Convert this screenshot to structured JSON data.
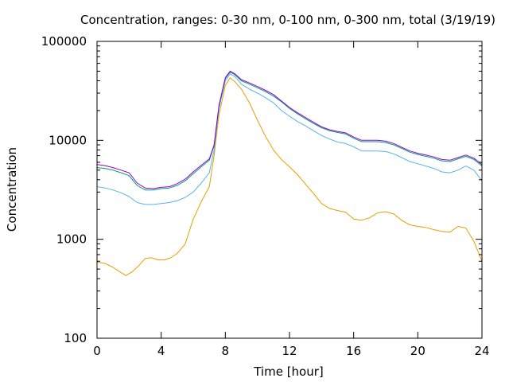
{
  "chart_data": {
    "type": "line",
    "title": "Concentration, ranges: 0-30 nm, 0-100 nm, 0-300 nm, total (3/19/19)",
    "xlabel": "Time [hour]",
    "ylabel": "Concentration",
    "xlim": [
      0,
      24
    ],
    "ylim": [
      100,
      100000
    ],
    "yscale": "log",
    "grid": false,
    "x_ticks": [
      0,
      4,
      8,
      12,
      16,
      20,
      24
    ],
    "x_tick_labels": [
      "0",
      "4",
      "8",
      "12",
      "16",
      "20",
      "24"
    ],
    "y_ticks": [
      100,
      1000,
      10000,
      100000
    ],
    "y_tick_labels": [
      "100",
      "1000",
      "10000",
      "100000"
    ],
    "series": [
      {
        "color": "#e69f00",
        "x": [
          0,
          0.5,
          1,
          1.5,
          1.8,
          2.2,
          2.6,
          3,
          3.4,
          3.8,
          4.2,
          4.6,
          5,
          5.5,
          6,
          6.5,
          7,
          7.3,
          7.6,
          8,
          8.3,
          8.6,
          9,
          9.5,
          10,
          10.5,
          11,
          11.5,
          12,
          12.5,
          13,
          13.5,
          14,
          14.5,
          15,
          15.5,
          16,
          16.5,
          17,
          17.5,
          18,
          18.5,
          19,
          19.5,
          20,
          20.5,
          21,
          21.5,
          22,
          22.5,
          23,
          23.5,
          24
        ],
        "y": [
          590,
          570,
          520,
          460,
          430,
          470,
          540,
          640,
          650,
          620,
          620,
          650,
          720,
          900,
          1600,
          2400,
          3400,
          7000,
          18000,
          36000,
          43000,
          39000,
          33000,
          24000,
          16000,
          11000,
          8000,
          6400,
          5400,
          4500,
          3600,
          2900,
          2300,
          2050,
          1950,
          1880,
          1600,
          1560,
          1650,
          1850,
          1900,
          1800,
          1550,
          1400,
          1350,
          1320,
          1250,
          1200,
          1180,
          1350,
          1300,
          950,
          600
        ]
      },
      {
        "color": "#56b4e9",
        "x": [
          0,
          0.5,
          1,
          1.5,
          2,
          2.5,
          3,
          3.5,
          4,
          4.5,
          5,
          5.5,
          6,
          6.5,
          7,
          7.3,
          7.6,
          8,
          8.3,
          8.6,
          9,
          9.5,
          10,
          10.5,
          11,
          11.5,
          12,
          12.5,
          13,
          13.5,
          14,
          14.5,
          15,
          15.5,
          16,
          16.5,
          17,
          17.5,
          18,
          18.5,
          19,
          19.5,
          20,
          20.5,
          21,
          21.5,
          22,
          22.5,
          23,
          23.5,
          24
        ],
        "y": [
          3400,
          3300,
          3150,
          2950,
          2700,
          2350,
          2250,
          2250,
          2300,
          2350,
          2450,
          2650,
          3000,
          3700,
          4700,
          8000,
          21000,
          40000,
          47000,
          44000,
          37000,
          33000,
          30000,
          27000,
          24000,
          20000,
          17500,
          15500,
          14000,
          12500,
          11200,
          10300,
          9600,
          9300,
          8600,
          7800,
          7800,
          7800,
          7700,
          7300,
          6700,
          6100,
          5800,
          5500,
          5200,
          4800,
          4700,
          5000,
          5500,
          5000,
          3900
        ]
      },
      {
        "color": "#009e73",
        "x": [
          0,
          0.5,
          1,
          1.5,
          2,
          2.5,
          3,
          3.5,
          4,
          4.5,
          5,
          5.5,
          6,
          6.5,
          7,
          7.3,
          7.6,
          8,
          8.3,
          8.6,
          9,
          9.5,
          10,
          10.5,
          11,
          11.5,
          12,
          12.5,
          13,
          13.5,
          14,
          14.5,
          15,
          15.5,
          16,
          16.5,
          17,
          17.5,
          18,
          18.5,
          19,
          19.5,
          20,
          20.5,
          21,
          21.5,
          22,
          22.5,
          23,
          23.5,
          24
        ],
        "y": [
          5300,
          5200,
          5000,
          4700,
          4400,
          3500,
          3150,
          3150,
          3250,
          3300,
          3500,
          3900,
          4600,
          5400,
          6300,
          8800,
          22000,
          42000,
          49000,
          46000,
          40000,
          37000,
          34000,
          31000,
          28000,
          24500,
          21000,
          18500,
          16500,
          14800,
          13400,
          12500,
          12000,
          11600,
          10500,
          9700,
          9700,
          9700,
          9500,
          9000,
          8300,
          7600,
          7200,
          6900,
          6600,
          6200,
          6100,
          6500,
          6900,
          6400,
          5500
        ]
      },
      {
        "color": "#9400d3",
        "x": [
          0,
          0.5,
          1,
          1.5,
          2,
          2.5,
          3,
          3.5,
          4,
          4.5,
          5,
          5.5,
          6,
          6.5,
          7,
          7.3,
          7.6,
          8,
          8.3,
          8.6,
          9,
          9.5,
          10,
          10.5,
          11,
          11.5,
          12,
          12.5,
          13,
          13.5,
          14,
          14.5,
          15,
          15.5,
          16,
          16.5,
          17,
          17.5,
          18,
          18.5,
          19,
          19.5,
          20,
          20.5,
          21,
          21.5,
          22,
          22.5,
          23,
          23.5,
          24
        ],
        "y": [
          5700,
          5550,
          5300,
          5000,
          4700,
          3700,
          3300,
          3250,
          3350,
          3400,
          3650,
          4050,
          4800,
          5600,
          6500,
          9000,
          22500,
          43000,
          50000,
          47000,
          41000,
          38000,
          35000,
          32000,
          29000,
          25000,
          21500,
          19000,
          17000,
          15200,
          13700,
          12800,
          12300,
          11900,
          10800,
          10000,
          10000,
          10000,
          9800,
          9300,
          8500,
          7800,
          7400,
          7100,
          6800,
          6400,
          6300,
          6700,
          7100,
          6600,
          5700
        ]
      }
    ]
  }
}
